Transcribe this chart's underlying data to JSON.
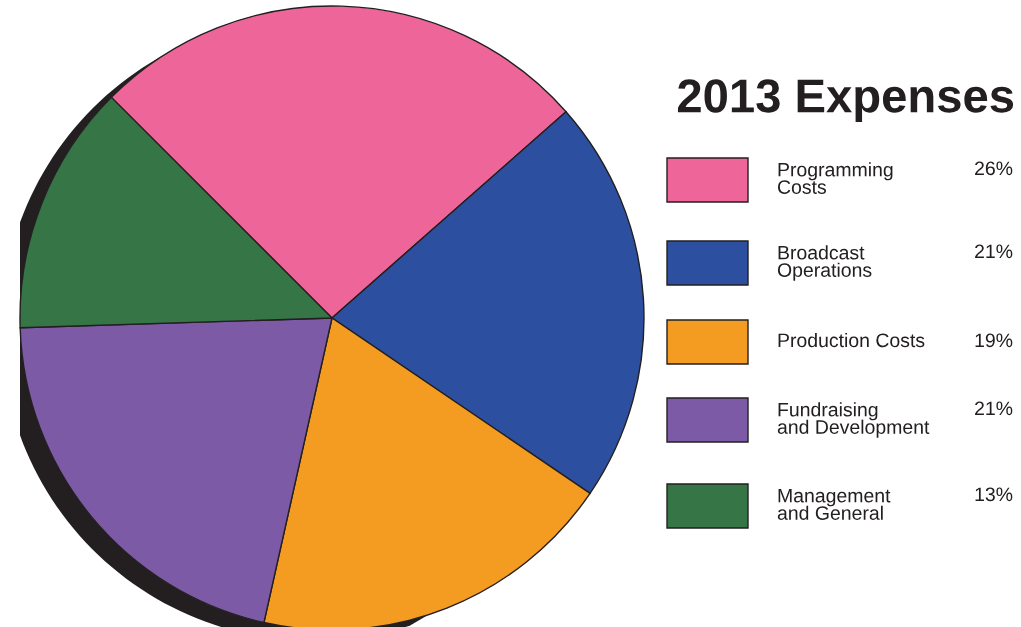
{
  "chart_data": {
    "type": "pie",
    "title": "2013 Expenses",
    "categories": [
      "Programming\nCosts",
      "Broadcast\nOperations",
      "Production Costs",
      "Fundraising\nand Development",
      "Management\nand General"
    ],
    "values": [
      26,
      21,
      19,
      21,
      13
    ],
    "colors": [
      "#ee6699",
      "#2d4fa0",
      "#f39c21",
      "#7d5aa6",
      "#357546"
    ],
    "value_labels": [
      "26%",
      "21%",
      "19%",
      "21%",
      "13%"
    ],
    "legend": "right"
  }
}
